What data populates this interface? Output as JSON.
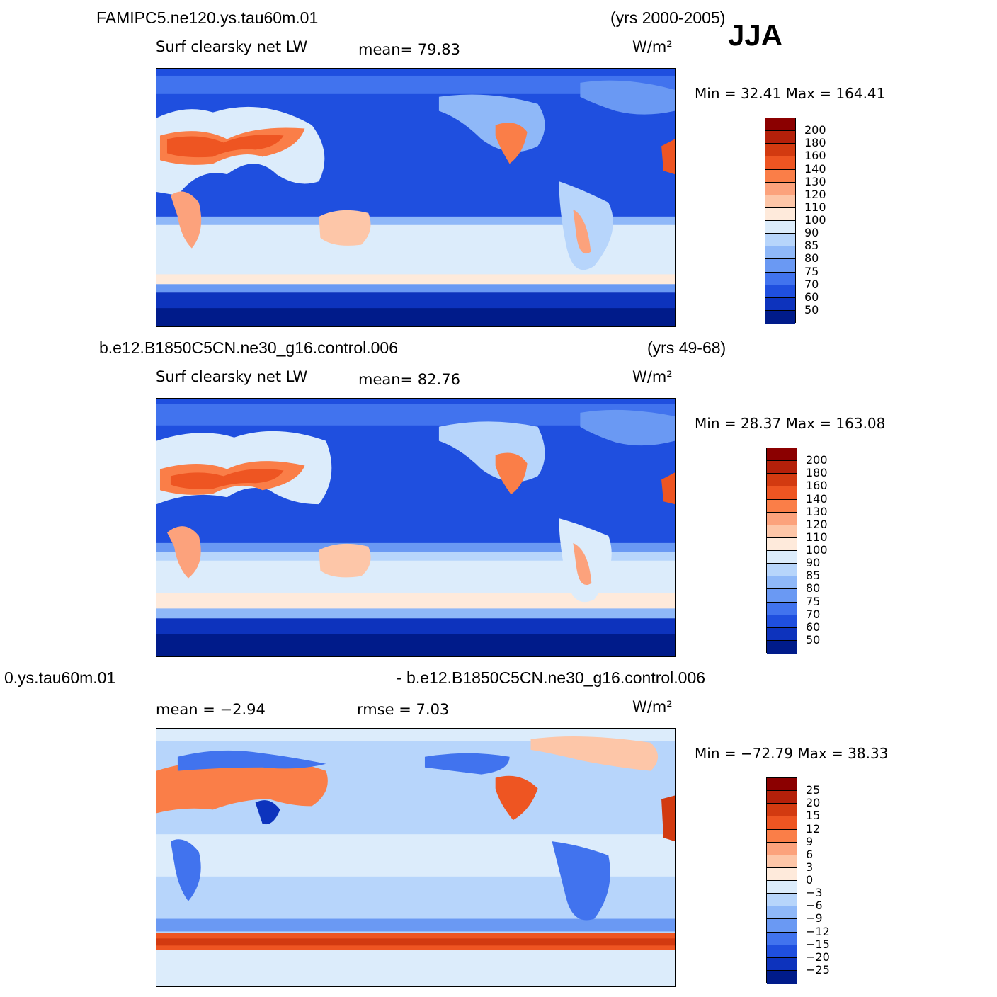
{
  "season": "JJA",
  "unit": "W/m²",
  "panels": [
    {
      "case": "FAMIPC5.ne120.ys.tau60m.01",
      "years": "(yrs 2000-2005)",
      "variable": "Surf  clearsky  net  LW",
      "stat_left": "mean=   79.83",
      "stat_center": "",
      "minmax": "Min  =    32.41  Max  =  164.41",
      "colorbar": {
        "labels": [
          "200",
          "180",
          "160",
          "140",
          "130",
          "120",
          "110",
          "100",
          "90",
          "85",
          "80",
          "75",
          "70",
          "60",
          "50"
        ],
        "colors": [
          "#8b0000",
          "#b4200a",
          "#d23a10",
          "#ee5522",
          "#fa7e48",
          "#fca27c",
          "#fdc6a8",
          "#feeadb",
          "#dcecfb",
          "#b7d5fb",
          "#8fb8f8",
          "#6a99f3",
          "#4173ee",
          "#1f4fdf",
          "#0d33bd",
          "#001b8a"
        ]
      }
    },
    {
      "case": "b.e12.B1850C5CN.ne30_g16.control.006",
      "years": "(yrs 49-68)",
      "variable": "Surf  clearsky  net  LW",
      "stat_left": "mean=   82.76",
      "stat_center": "",
      "minmax": "Min  =    28.37  Max  =  163.08",
      "colorbar": {
        "labels": [
          "200",
          "180",
          "160",
          "140",
          "130",
          "120",
          "110",
          "100",
          "90",
          "85",
          "80",
          "75",
          "70",
          "60",
          "50"
        ],
        "colors": [
          "#8b0000",
          "#b4200a",
          "#d23a10",
          "#ee5522",
          "#fa7e48",
          "#fca27c",
          "#fdc6a8",
          "#feeadb",
          "#dcecfb",
          "#b7d5fb",
          "#8fb8f8",
          "#6a99f3",
          "#4173ee",
          "#1f4fdf",
          "#0d33bd",
          "#001b8a"
        ]
      }
    },
    {
      "case": "0.ys.tau60m.01",
      "years": "- b.e12.B1850C5CN.ne30_g16.control.006",
      "variable": "",
      "stat_left": "mean  =    −2.94",
      "stat_center": "rmse  =     7.03",
      "minmax": "Min  =  −72.79  Max  =    38.33",
      "colorbar": {
        "labels": [
          "25",
          "20",
          "15",
          "12",
          "9",
          "6",
          "3",
          "0",
          "−3",
          "−6",
          "−9",
          "−12",
          "−15",
          "−20",
          "−25"
        ],
        "colors": [
          "#8b0000",
          "#b4200a",
          "#d23a10",
          "#ee5522",
          "#fa7e48",
          "#fca27c",
          "#fdc6a8",
          "#feeadb",
          "#dcecfb",
          "#b7d5fb",
          "#8fb8f8",
          "#6a99f3",
          "#4173ee",
          "#1f4fdf",
          "#0d33bd",
          "#001b8a"
        ]
      }
    }
  ]
}
